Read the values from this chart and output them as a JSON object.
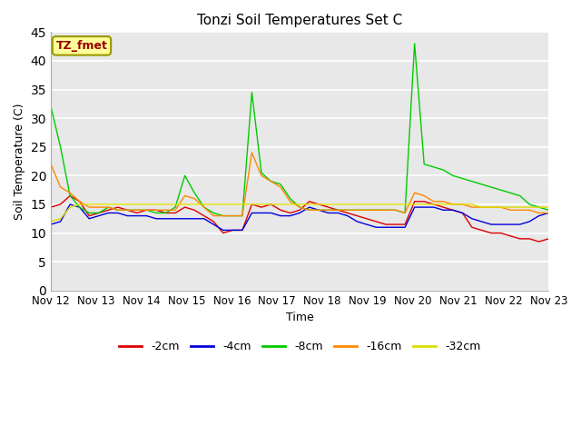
{
  "title": "Tonzi Soil Temperatures Set C",
  "xlabel": "Time",
  "ylabel": "Soil Temperature (C)",
  "ylim": [
    0,
    45
  ],
  "yticks": [
    0,
    5,
    10,
    15,
    20,
    25,
    30,
    35,
    40,
    45
  ],
  "x_labels": [
    "Nov 12",
    "Nov 13",
    "Nov 14",
    "Nov 15",
    "Nov 16",
    "Nov 17",
    "Nov 18",
    "Nov 19",
    "Nov 20",
    "Nov 21",
    "Nov 22",
    "Nov 23"
  ],
  "annotation_text": "TZ_fmet",
  "annotation_color": "#990000",
  "annotation_bg": "#ffff99",
  "annotation_edge": "#999900",
  "series": {
    "-2cm": {
      "color": "#dd0000",
      "data": [
        14.5,
        15.0,
        16.5,
        15.5,
        13.0,
        13.5,
        14.0,
        14.5,
        14.0,
        13.5,
        14.0,
        14.0,
        13.5,
        13.5,
        14.5,
        14.0,
        13.0,
        12.0,
        10.0,
        10.5,
        10.5,
        15.0,
        14.5,
        15.0,
        14.0,
        13.5,
        14.0,
        15.5,
        15.0,
        14.5,
        14.0,
        13.5,
        13.0,
        12.5,
        12.0,
        11.5,
        11.5,
        11.5,
        15.5,
        15.5,
        15.0,
        14.5,
        14.0,
        13.5,
        11.0,
        10.5,
        10.0,
        10.0,
        9.5,
        9.0,
        9.0,
        8.5,
        9.0
      ]
    },
    "-4cm": {
      "color": "#0000dd",
      "data": [
        11.5,
        12.0,
        15.0,
        14.5,
        12.5,
        13.0,
        13.5,
        13.5,
        13.0,
        13.0,
        13.0,
        12.5,
        12.5,
        12.5,
        12.5,
        12.5,
        12.5,
        11.5,
        10.5,
        10.5,
        10.5,
        13.5,
        13.5,
        13.5,
        13.0,
        13.0,
        13.5,
        14.5,
        14.0,
        13.5,
        13.5,
        13.0,
        12.0,
        11.5,
        11.0,
        11.0,
        11.0,
        11.0,
        14.5,
        14.5,
        14.5,
        14.0,
        14.0,
        13.5,
        12.5,
        12.0,
        11.5,
        11.5,
        11.5,
        11.5,
        12.0,
        13.0,
        13.5
      ]
    },
    "-8cm": {
      "color": "#00cc00",
      "data": [
        32.0,
        25.0,
        16.5,
        14.5,
        13.5,
        13.5,
        14.5,
        14.0,
        14.0,
        14.0,
        14.0,
        13.5,
        13.5,
        14.5,
        20.0,
        17.0,
        14.5,
        13.5,
        13.0,
        13.0,
        13.0,
        34.5,
        20.5,
        19.0,
        18.5,
        16.0,
        14.5,
        14.0,
        14.0,
        14.0,
        14.0,
        14.0,
        14.0,
        14.0,
        14.0,
        14.0,
        14.0,
        13.5,
        43.0,
        22.0,
        21.5,
        21.0,
        20.0,
        19.5,
        19.0,
        18.5,
        18.0,
        17.5,
        17.0,
        16.5,
        15.0,
        14.5,
        14.0
      ]
    },
    "-16cm": {
      "color": "#ff8800",
      "data": [
        22.0,
        18.0,
        17.0,
        15.5,
        14.5,
        14.5,
        14.5,
        14.0,
        14.0,
        14.0,
        14.0,
        14.0,
        14.0,
        14.0,
        16.5,
        16.0,
        14.5,
        13.0,
        13.0,
        13.0,
        13.0,
        24.0,
        20.0,
        19.0,
        18.0,
        15.5,
        14.5,
        14.0,
        14.0,
        14.0,
        14.0,
        14.0,
        14.0,
        14.0,
        14.0,
        14.0,
        14.0,
        13.5,
        17.0,
        16.5,
        15.5,
        15.5,
        15.0,
        15.0,
        14.5,
        14.5,
        14.5,
        14.5,
        14.0,
        14.0,
        14.0,
        13.5,
        13.5
      ]
    },
    "-32cm": {
      "color": "#dddd00",
      "data": [
        12.0,
        12.5,
        14.5,
        15.0,
        15.0,
        15.0,
        15.0,
        15.0,
        15.0,
        15.0,
        15.0,
        15.0,
        15.0,
        15.0,
        15.0,
        15.0,
        15.0,
        15.0,
        15.0,
        15.0,
        15.0,
        15.0,
        15.0,
        15.0,
        15.0,
        15.0,
        15.0,
        15.0,
        15.0,
        15.0,
        15.0,
        15.0,
        15.0,
        15.0,
        15.0,
        15.0,
        15.0,
        15.0,
        15.0,
        15.0,
        15.0,
        15.0,
        15.0,
        15.0,
        15.0,
        14.5,
        14.5,
        14.5,
        14.5,
        14.5,
        14.5,
        14.5,
        14.5
      ]
    }
  },
  "fig_bg": "#ffffff",
  "plot_bg": "#e8e8e8",
  "grid_color": "#ffffff",
  "stripe_color": "#e0e0e0",
  "stripe_alt_color": "#d0d0d0"
}
